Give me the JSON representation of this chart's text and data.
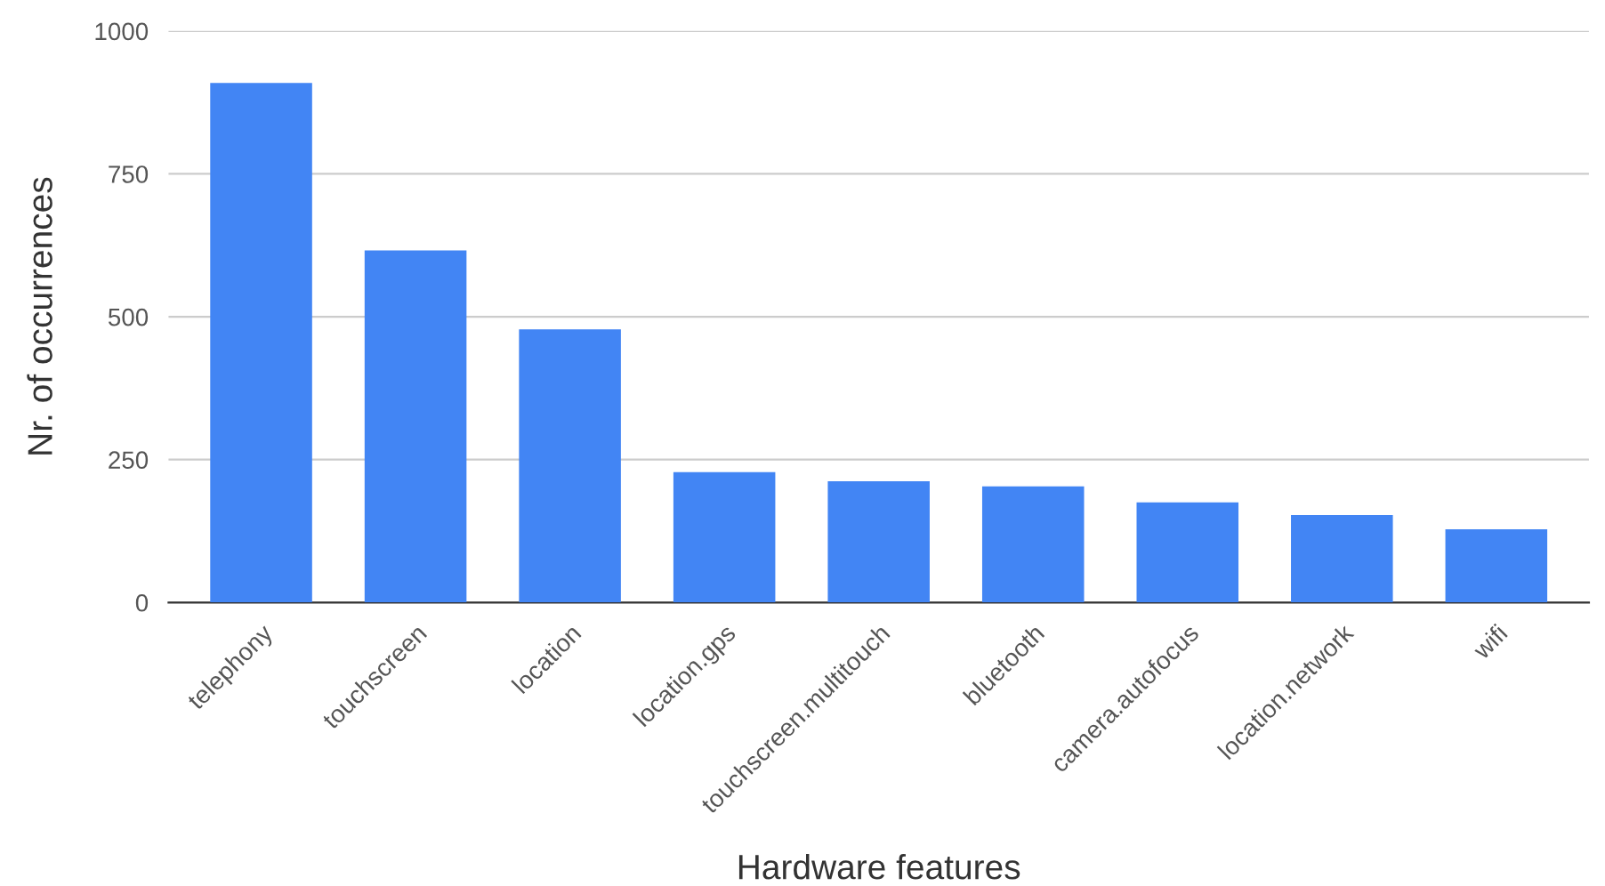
{
  "chart_data": {
    "type": "bar",
    "xlabel": "Hardware features",
    "ylabel": "Nr. of occurrences",
    "categories": [
      "telephony",
      "touchscreen",
      "location",
      "location.gps",
      "touchscreen.multitouch",
      "bluetooth",
      "camera.autofocus",
      "location.network",
      "wifi"
    ],
    "values": [
      909,
      616,
      478,
      228,
      212,
      203,
      175,
      153,
      128
    ],
    "color": "#4285f4",
    "ylim": [
      0,
      1000
    ],
    "yticks": [
      0,
      250,
      500,
      750,
      1000
    ],
    "grid": "y",
    "legend": false
  }
}
